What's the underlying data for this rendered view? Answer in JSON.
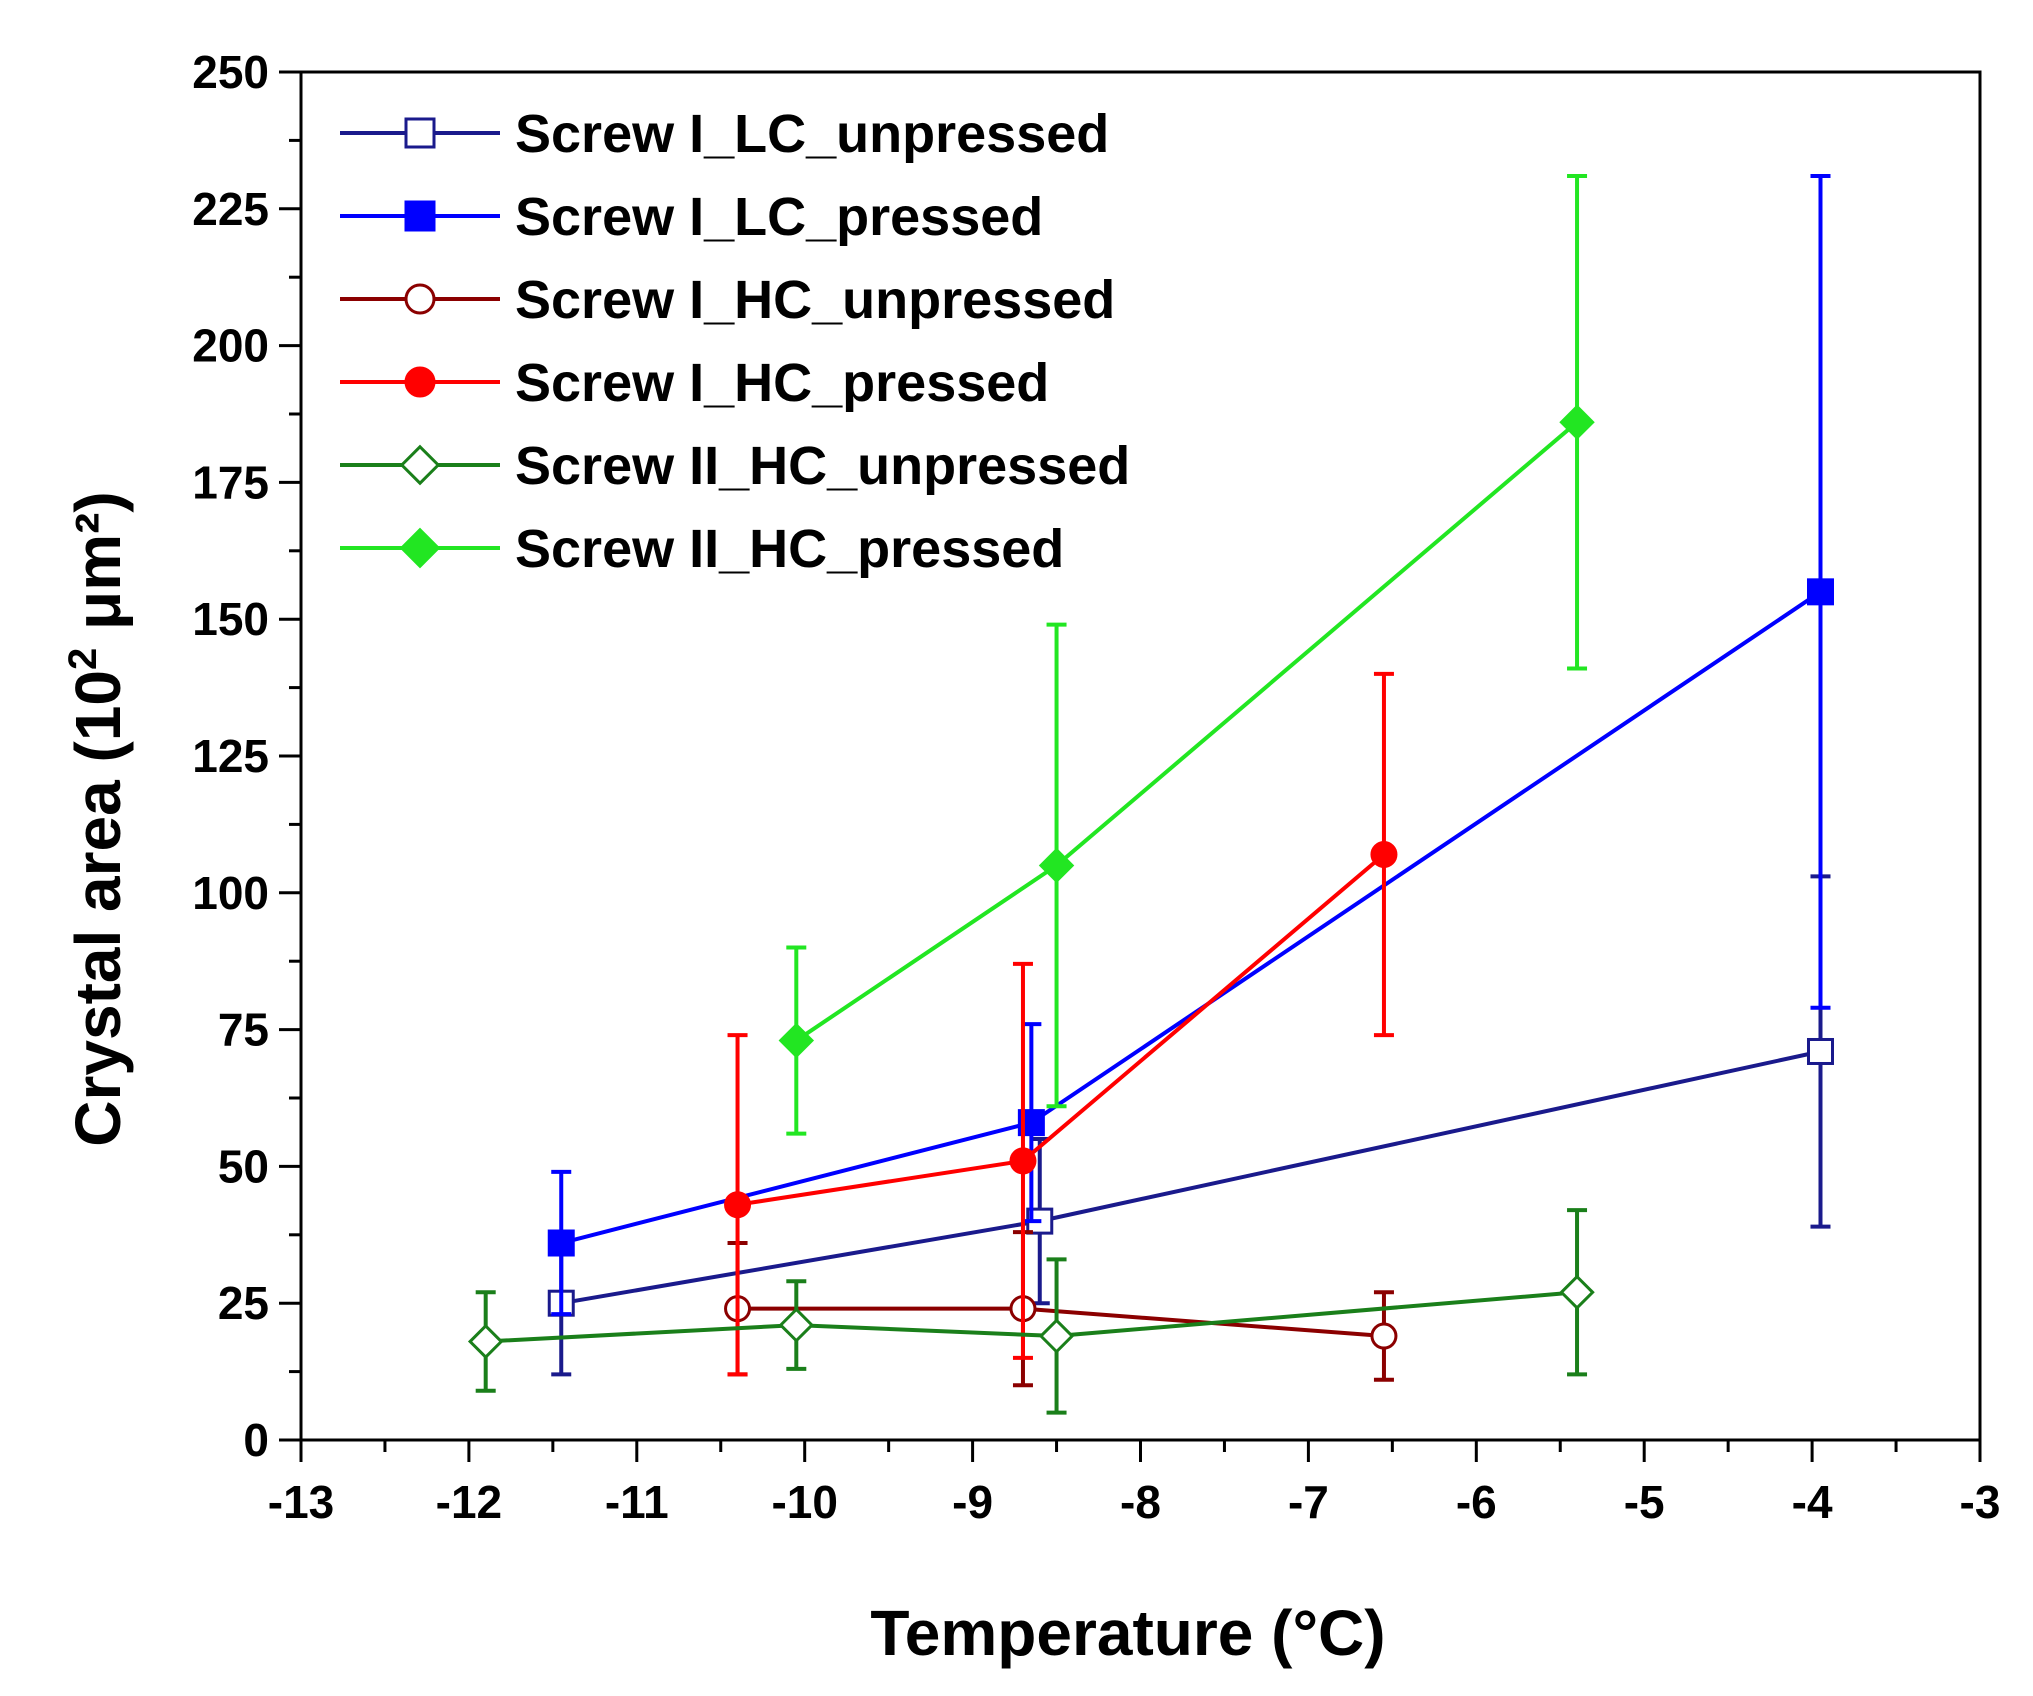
{
  "chart_data": {
    "type": "line",
    "title": "",
    "xlabel": "Temperature (°C)",
    "ylabel_main": "Crystal area (10",
    "ylabel_sup": "2",
    "ylabel_tail": " μm²)",
    "xlim": [
      -13,
      -3
    ],
    "ylim": [
      0,
      250
    ],
    "x_ticks": [
      -13,
      -12,
      -11,
      -10,
      -9,
      -8,
      -7,
      -6,
      -5,
      -4,
      -3
    ],
    "x_tick_labels": [
      "-13",
      "-12",
      "-11",
      "-10",
      "-9",
      "-8",
      "-7",
      "-6",
      "-5",
      "-4",
      "-3"
    ],
    "y_ticks": [
      0,
      25,
      50,
      75,
      100,
      125,
      150,
      175,
      200,
      225,
      250
    ],
    "y_tick_labels": [
      "0",
      "25",
      "50",
      "75",
      "100",
      "125",
      "150",
      "175",
      "200",
      "225",
      "250"
    ],
    "grid": false,
    "legend_position": "top-left",
    "series": [
      {
        "name": "Screw I_LC_unpressed",
        "color": "#1a1a8c",
        "marker": "square",
        "filled": false,
        "x": [
          -11.45,
          -8.6,
          -3.95
        ],
        "y": [
          25,
          40,
          71
        ],
        "err": [
          13,
          15,
          32
        ]
      },
      {
        "name": "Screw I_LC_pressed",
        "color": "#0000ff",
        "marker": "square",
        "filled": true,
        "x": [
          -11.45,
          -8.65,
          -3.95
        ],
        "y": [
          36,
          58,
          155
        ],
        "err": [
          13,
          18,
          76
        ]
      },
      {
        "name": "Screw I_HC_unpressed",
        "color": "#8b0000",
        "marker": "circle",
        "filled": false,
        "x": [
          -10.4,
          -8.7,
          -6.55
        ],
        "y": [
          24,
          24,
          19
        ],
        "err": [
          12,
          14,
          8
        ]
      },
      {
        "name": "Screw I_HC_pressed",
        "color": "#ff0000",
        "marker": "circle",
        "filled": true,
        "x": [
          -10.4,
          -8.7,
          -6.55
        ],
        "y": [
          43,
          51,
          107
        ],
        "err": [
          31,
          36,
          33
        ]
      },
      {
        "name": "Screw II_HC_unpressed",
        "color": "#1a7f1a",
        "marker": "diamond",
        "filled": false,
        "x": [
          -11.9,
          -10.05,
          -8.5,
          -5.4
        ],
        "y": [
          18,
          21,
          19,
          27
        ],
        "err": [
          9,
          8,
          14,
          15
        ]
      },
      {
        "name": "Screw II_HC_pressed",
        "color": "#22e622",
        "marker": "diamond",
        "filled": true,
        "x": [
          -10.05,
          -8.5,
          -5.4
        ],
        "y": [
          73,
          105,
          186
        ],
        "err": [
          17,
          44,
          45
        ]
      }
    ]
  }
}
